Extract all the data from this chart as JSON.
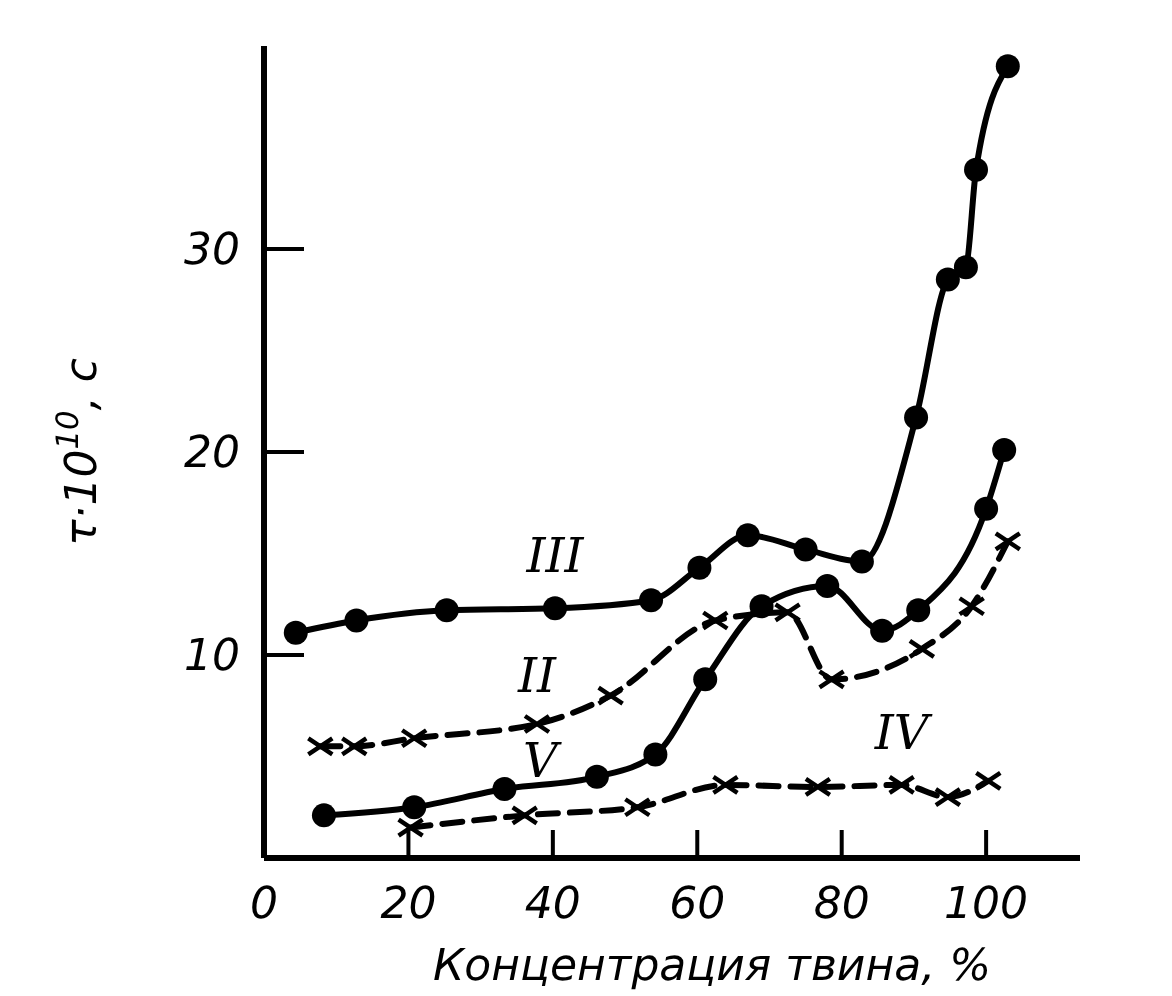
{
  "chart_data": {
    "type": "line",
    "xlabel": "Концентрация твина, %",
    "ylabel": "τ·10$^{10}$, с",
    "xlim": [
      0,
      113
    ],
    "ylim": [
      0,
      40
    ],
    "xticks": [
      0,
      20,
      40,
      60,
      80,
      100
    ],
    "yticks": [
      10,
      20,
      30
    ],
    "grid": false,
    "series": [
      {
        "name": "III",
        "color": "#000000",
        "marker": "circle",
        "line_style": "solid",
        "x": [
          4.4,
          12.8,
          25.3,
          40.3,
          53.6,
          60.3,
          67,
          75,
          82.8,
          90.3,
          94.7,
          97.2,
          98.6,
          103
        ],
        "values": [
          11.1,
          11.7,
          12.2,
          12.3,
          12.7,
          14.3,
          15.9,
          15.2,
          14.6,
          21.7,
          28.5,
          29.1,
          33.9,
          39
        ]
      },
      {
        "name": "II",
        "color": "#000000",
        "marker": "cross",
        "line_style": "dashed",
        "x": [
          7.8,
          12.5,
          20.8,
          37.8,
          48,
          62.5,
          72.5,
          78.6,
          91.1,
          98,
          103
        ],
        "values": [
          5.5,
          5.5,
          5.9,
          6.6,
          8,
          11.7,
          12.1,
          8.8,
          10.3,
          12.4,
          15.6
        ]
      },
      {
        "name": "V",
        "color": "#000000",
        "marker": "circle",
        "line_style": "solid",
        "x": [
          8.3,
          20.8,
          33.3,
          46.1,
          54.2,
          61.1,
          68.9,
          78,
          85.6,
          90.6,
          100,
          102.5
        ],
        "values": [
          2.1,
          2.5,
          3.4,
          4,
          5.1,
          8.8,
          12.4,
          13.4,
          11.2,
          12.2,
          17.2,
          20.1
        ]
      },
      {
        "name": "IV",
        "color": "#000000",
        "marker": "cross",
        "line_style": "dashed",
        "x": [
          20.3,
          36.1,
          51.7,
          63.9,
          76.7,
          88.3,
          94.7,
          100.3
        ],
        "values": [
          1.5,
          2.1,
          2.5,
          3.6,
          3.5,
          3.6,
          3,
          3.8
        ]
      }
    ]
  }
}
